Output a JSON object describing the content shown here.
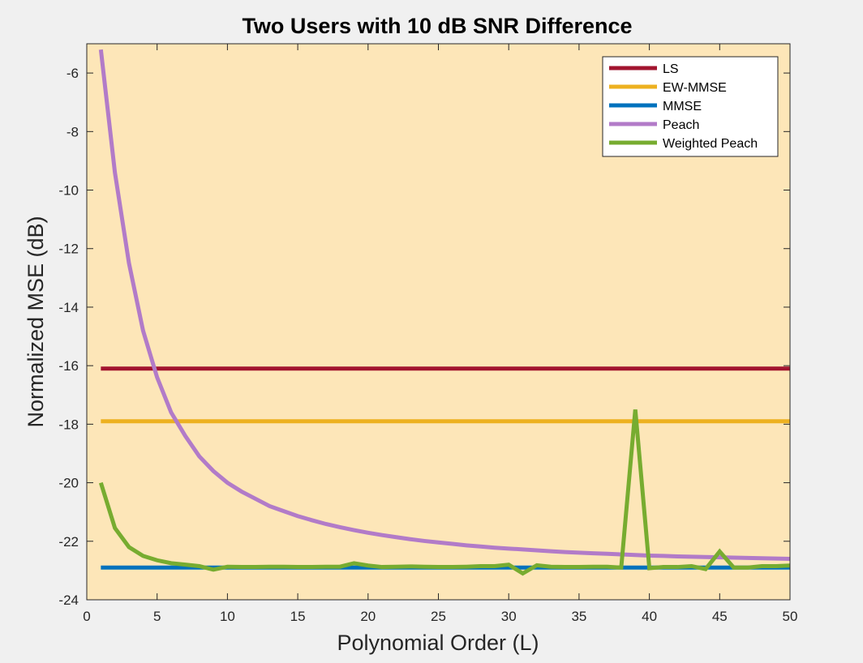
{
  "chart_data": {
    "type": "line",
    "title": "Two Users with 10 dB SNR Difference",
    "xlabel": "Polynomial Order (L)",
    "ylabel": "Normalized MSE (dB)",
    "xlim": [
      0,
      50
    ],
    "ylim": [
      -24,
      -5
    ],
    "xticks": [
      0,
      5,
      10,
      15,
      20,
      25,
      30,
      35,
      40,
      45,
      50
    ],
    "yticks": [
      -24,
      -22,
      -20,
      -18,
      -16,
      -14,
      -12,
      -10,
      -8,
      -6
    ],
    "grid": false,
    "legend_position": "top-right",
    "plot_background": "#fde6b8",
    "figure_background": "#f0f0f0",
    "series": [
      {
        "name": "LS",
        "color": "#a2142f",
        "x": [
          1,
          50
        ],
        "y": [
          -16.1,
          -16.1
        ]
      },
      {
        "name": "EW-MMSE",
        "color": "#edb120",
        "x": [
          1,
          50
        ],
        "y": [
          -17.9,
          -17.9
        ]
      },
      {
        "name": "MMSE",
        "color": "#0072bd",
        "x": [
          1,
          50
        ],
        "y": [
          -22.9,
          -22.9
        ]
      },
      {
        "name": "Peach",
        "color": "#b27bc8",
        "x": [
          1,
          2,
          3,
          4,
          5,
          6,
          7,
          8,
          9,
          10,
          11,
          12,
          13,
          14,
          15,
          16,
          17,
          18,
          19,
          20,
          21,
          22,
          23,
          24,
          25,
          26,
          27,
          28,
          29,
          30,
          31,
          32,
          33,
          34,
          35,
          36,
          37,
          38,
          39,
          40,
          41,
          42,
          43,
          44,
          45,
          46,
          47,
          48,
          49,
          50
        ],
        "y": [
          -5.2,
          -9.4,
          -12.5,
          -14.8,
          -16.4,
          -17.6,
          -18.4,
          -19.1,
          -19.6,
          -20.0,
          -20.3,
          -20.55,
          -20.8,
          -20.97,
          -21.14,
          -21.28,
          -21.41,
          -21.52,
          -21.62,
          -21.71,
          -21.79,
          -21.86,
          -21.93,
          -21.99,
          -22.04,
          -22.09,
          -22.14,
          -22.18,
          -22.22,
          -22.25,
          -22.28,
          -22.31,
          -22.34,
          -22.37,
          -22.39,
          -22.41,
          -22.43,
          -22.45,
          -22.47,
          -22.49,
          -22.5,
          -22.52,
          -22.53,
          -22.54,
          -22.55,
          -22.56,
          -22.57,
          -22.58,
          -22.59,
          -22.6
        ]
      },
      {
        "name": "Weighted Peach",
        "color": "#77ac30",
        "x": [
          1,
          2,
          3,
          4,
          5,
          6,
          7,
          8,
          9,
          10,
          11,
          12,
          13,
          14,
          15,
          16,
          17,
          18,
          19,
          20,
          21,
          22,
          23,
          24,
          25,
          26,
          27,
          28,
          29,
          30,
          31,
          32,
          33,
          34,
          35,
          36,
          37,
          38,
          39,
          40,
          41,
          42,
          43,
          44,
          45,
          46,
          47,
          48,
          49,
          50
        ],
        "y": [
          -20.0,
          -21.55,
          -22.2,
          -22.5,
          -22.65,
          -22.75,
          -22.8,
          -22.85,
          -22.97,
          -22.87,
          -22.88,
          -22.88,
          -22.87,
          -22.87,
          -22.88,
          -22.88,
          -22.87,
          -22.87,
          -22.75,
          -22.83,
          -22.88,
          -22.87,
          -22.86,
          -22.87,
          -22.88,
          -22.88,
          -22.87,
          -22.85,
          -22.85,
          -22.8,
          -23.1,
          -22.82,
          -22.87,
          -22.88,
          -22.88,
          -22.87,
          -22.87,
          -22.9,
          -17.5,
          -22.92,
          -22.88,
          -22.88,
          -22.85,
          -22.95,
          -22.35,
          -22.9,
          -22.9,
          -22.85,
          -22.85,
          -22.83
        ]
      }
    ]
  }
}
